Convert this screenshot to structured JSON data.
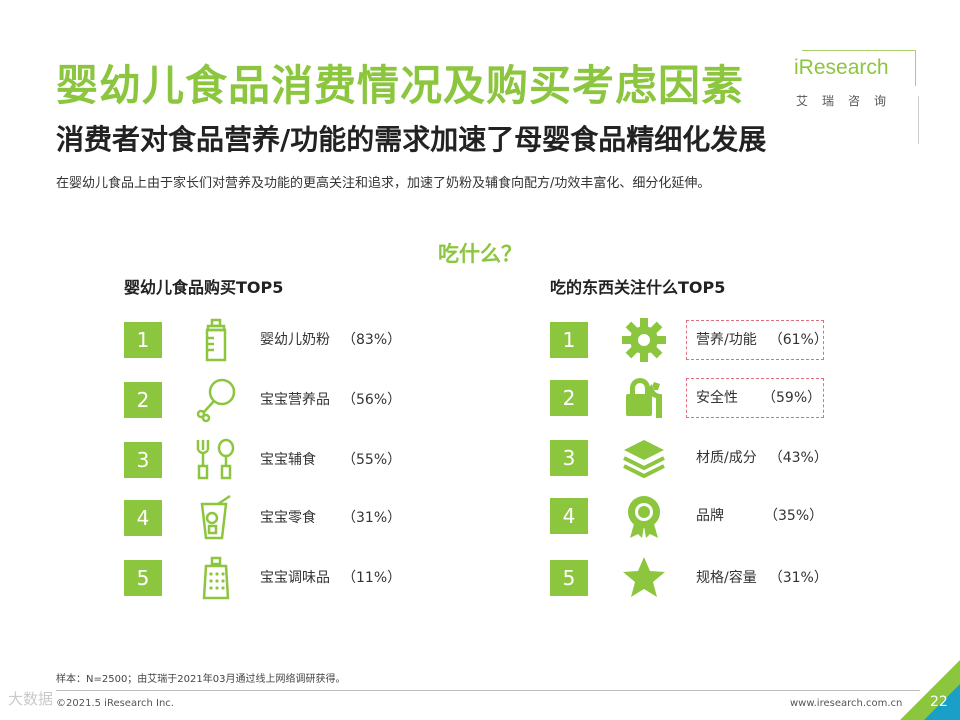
{
  "header": {
    "title": "婴幼儿食品消费情况及购买考虑因素",
    "subtitle": "消费者对食品营养/功能的需求加速了母婴食品精细化发展",
    "description": "在婴幼儿食品上由于家长们对营养及功能的更高关注和追求，加速了奶粉及辅食向配方/功效丰富化、细分化延伸。"
  },
  "logo": {
    "text": "iResearch",
    "cn": "艾瑞咨询"
  },
  "question": "吃什么？",
  "left": {
    "title": "婴幼儿食品购买TOP5",
    "items": [
      {
        "rank": "1",
        "label": "婴幼儿奶粉",
        "pct": "（83%）",
        "icon": "baby-bottle-icon"
      },
      {
        "rank": "2",
        "label": "宝宝营养品",
        "pct": "（56%）",
        "icon": "chicken-leg-icon"
      },
      {
        "rank": "3",
        "label": "宝宝辅食",
        "pct": "（55%）",
        "icon": "fork-spoon-icon"
      },
      {
        "rank": "4",
        "label": "宝宝零食",
        "pct": "（31%）",
        "icon": "drink-glass-icon"
      },
      {
        "rank": "5",
        "label": "宝宝调味品",
        "pct": "（11%）",
        "icon": "spice-shaker-icon"
      }
    ]
  },
  "right": {
    "title": "吃的东西关注什么TOP5",
    "items": [
      {
        "rank": "1",
        "label": "营养/功能",
        "pct": "（61%）",
        "icon": "gear-icon",
        "highlight": true
      },
      {
        "rank": "2",
        "label": "安全性",
        "pct": "（59%）",
        "icon": "lock-wrench-icon",
        "highlight": true
      },
      {
        "rank": "3",
        "label": "材质/成分",
        "pct": "（43%）",
        "icon": "layers-icon",
        "highlight": false
      },
      {
        "rank": "4",
        "label": "品牌",
        "pct": "（35%）",
        "icon": "award-badge-icon",
        "highlight": false
      },
      {
        "rank": "5",
        "label": "规格/容量",
        "pct": "（31%）",
        "icon": "star-icon",
        "highlight": false
      }
    ]
  },
  "footer": {
    "note": "样本：N=2500；由艾瑞于2021年03月通过线上网络调研获得。",
    "copyright": "©2021.5 iResearch Inc.",
    "website": "www.iresearch.com.cn",
    "page": "22",
    "watermark": "大数据"
  },
  "colors": {
    "accent": "#8cc63e",
    "dash": "#e36f7e",
    "corner_dark": "#1aa0c8"
  }
}
